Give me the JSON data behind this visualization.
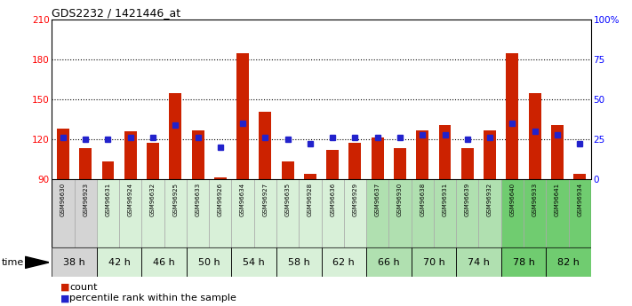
{
  "title": "GDS2232 / 1421446_at",
  "samples": [
    "GSM96630",
    "GSM96923",
    "GSM96631",
    "GSM96924",
    "GSM96632",
    "GSM96925",
    "GSM96633",
    "GSM96926",
    "GSM96634",
    "GSM96927",
    "GSM96635",
    "GSM96928",
    "GSM96636",
    "GSM96929",
    "GSM96637",
    "GSM96930",
    "GSM96638",
    "GSM96931",
    "GSM96639",
    "GSM96932",
    "GSM96640",
    "GSM96933",
    "GSM96641",
    "GSM96934"
  ],
  "counts": [
    128,
    113,
    103,
    126,
    117,
    155,
    127,
    91,
    185,
    141,
    103,
    94,
    112,
    117,
    121,
    113,
    127,
    131,
    113,
    127,
    185,
    155,
    131,
    94
  ],
  "percentile_ranks": [
    26,
    25,
    25,
    26,
    26,
    34,
    26,
    20,
    35,
    26,
    25,
    22,
    26,
    26,
    26,
    26,
    28,
    28,
    25,
    26,
    35,
    30,
    28,
    22
  ],
  "time_groups": [
    {
      "label": "38 h",
      "indices": [
        0,
        1
      ],
      "color": "#d4d4d4"
    },
    {
      "label": "42 h",
      "indices": [
        2,
        3
      ],
      "color": "#d8f0d8"
    },
    {
      "label": "46 h",
      "indices": [
        4,
        5
      ],
      "color": "#d8f0d8"
    },
    {
      "label": "50 h",
      "indices": [
        6,
        7
      ],
      "color": "#d8f0d8"
    },
    {
      "label": "54 h",
      "indices": [
        8,
        9
      ],
      "color": "#d8f0d8"
    },
    {
      "label": "58 h",
      "indices": [
        10,
        11
      ],
      "color": "#d8f0d8"
    },
    {
      "label": "62 h",
      "indices": [
        12,
        13
      ],
      "color": "#d8f0d8"
    },
    {
      "label": "66 h",
      "indices": [
        14,
        15
      ],
      "color": "#b0e0b0"
    },
    {
      "label": "70 h",
      "indices": [
        16,
        17
      ],
      "color": "#b0e0b0"
    },
    {
      "label": "74 h",
      "indices": [
        18,
        19
      ],
      "color": "#b0e0b0"
    },
    {
      "label": "78 h",
      "indices": [
        20,
        21
      ],
      "color": "#70cc70"
    },
    {
      "label": "82 h",
      "indices": [
        22,
        23
      ],
      "color": "#70cc70"
    }
  ],
  "bar_color": "#cc2200",
  "dot_color": "#2222cc",
  "ylim_left": [
    90,
    210
  ],
  "ylim_right": [
    0,
    100
  ],
  "yticks_left": [
    90,
    120,
    150,
    180,
    210
  ],
  "yticks_right": [
    0,
    25,
    50,
    75,
    100
  ],
  "ytick_labels_right": [
    "0",
    "25",
    "50",
    "75",
    "100%"
  ],
  "hlines": [
    120,
    150,
    180
  ],
  "bar_bottom": 90,
  "sample_bg_default": "#d4d4d4"
}
